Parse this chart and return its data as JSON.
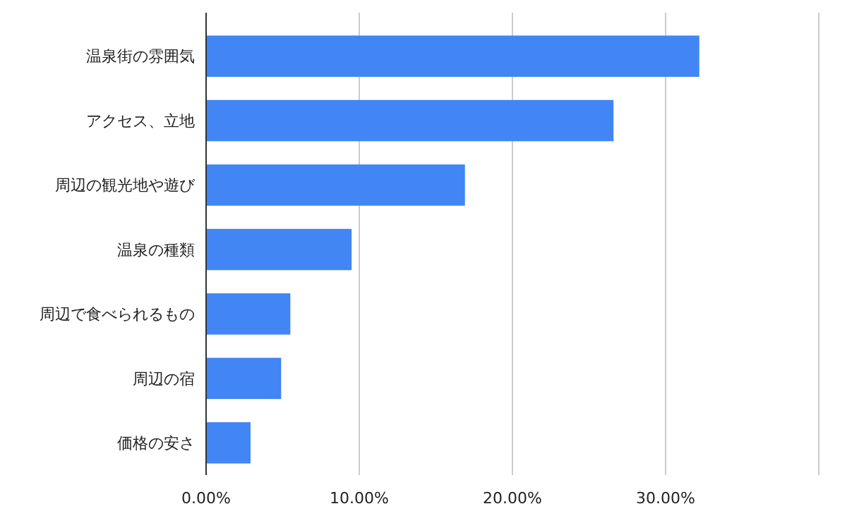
{
  "chart_data": {
    "type": "bar",
    "orientation": "horizontal",
    "categories": [
      "温泉街の雰囲気",
      "アクセス、立地",
      "周辺の観光地や遊び",
      "温泉の種類",
      "周辺で食べられるもの",
      "周辺の宿",
      "価格の安さ"
    ],
    "values": [
      32.2,
      26.6,
      16.9,
      9.5,
      5.5,
      4.9,
      2.9
    ],
    "color": "#4285f4",
    "xlim": [
      0,
      40
    ],
    "xticks": [
      {
        "value": 0,
        "label": "0.00%"
      },
      {
        "value": 10,
        "label": "10.00%"
      },
      {
        "value": 20,
        "label": "20.00%"
      },
      {
        "value": 30,
        "label": "30.00%"
      },
      {
        "value": 40,
        "label": null
      }
    ],
    "grid": "x"
  }
}
